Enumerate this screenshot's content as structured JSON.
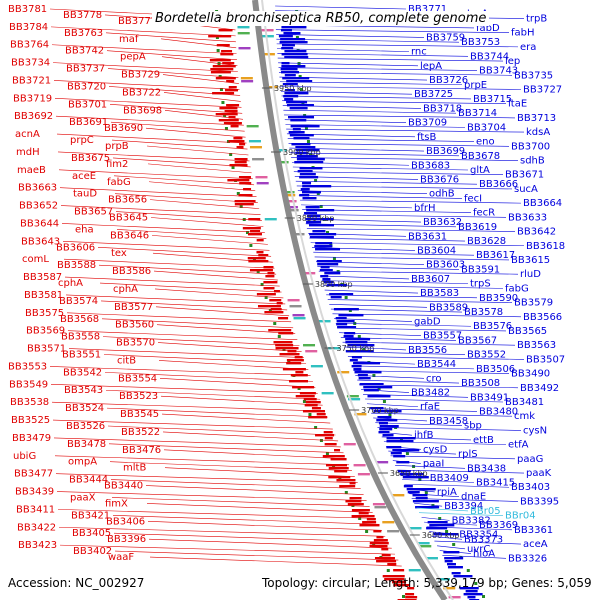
{
  "title": "Bordetella bronchiseptica RB50, complete genome",
  "footer": {
    "accession": "Accession: NC_002927",
    "summary": "Topology: circular; Length: 5,339,179 bp; Genes: 5,059"
  },
  "colors": {
    "reverse_strand": "#e00000",
    "forward_strand": "#0000dd",
    "rna_gene": "#33bbdd",
    "backbone": "#888888",
    "gc_marks": "#228822"
  },
  "ticks": [
    "3950 kbp",
    "3900 kbp",
    "3850 kbp",
    "3800 kbp",
    "3750 kbp",
    "3700 kbp",
    "3650 kbp",
    "3600 kbp"
  ],
  "left_labels": [
    "BB3781",
    "BB3778",
    "BB3777",
    "BB3784",
    "BB3763",
    "maf",
    "BB3764",
    "BB3742",
    "pepA",
    "BB3734",
    "BB3737",
    "BB3729",
    "BB3721",
    "BB3720",
    "BB3722",
    "BB3719",
    "BB3701",
    "BB3698",
    "BB3692",
    "BB3691",
    "BB3690",
    "acnA",
    "prpC",
    "prpB",
    "mdH",
    "BB3675",
    "fim2",
    "maeB",
    "aceE",
    "fabG",
    "BB3663",
    "tauD",
    "BB3656",
    "BB3652",
    "BB3657",
    "BB3645",
    "BB3644",
    "eha",
    "BB3646",
    "BB3643",
    "BB3606",
    "tex",
    "comL",
    "BB3588",
    "BB3586",
    "BB3587",
    "cphA",
    "cphA",
    "BB3581",
    "BB3574",
    "BB3577",
    "BB3575",
    "BB3568",
    "BB3560",
    "BB3569",
    "BB3558",
    "BB3570",
    "BB3571",
    "BB3551",
    "citB",
    "BB3553",
    "BB3542",
    "BB3554",
    "BB3549",
    "BB3543",
    "BB3523",
    "BB3538",
    "BB3524",
    "BB3545",
    "BB3525",
    "BB3526",
    "BB3522",
    "BB3479",
    "BB3478",
    "BB3476",
    "ubiG",
    "ompA",
    "mltB",
    "BB3477",
    "BB3444",
    "BB3440",
    "BB3439",
    "paaX",
    "fimX",
    "BB3411",
    "BB3421",
    "BB3406",
    "BB3422",
    "BB3405",
    "BB3396",
    "BB3423",
    "BB3402",
    "waaF"
  ],
  "right_labels": [
    "BB3771",
    "trpA",
    "trpB",
    "fabG",
    "fabD",
    "fabH",
    "BB3759",
    "BB3753",
    "era",
    "rnc",
    "BB3744",
    "lep",
    "lepA",
    "BB3743",
    "BB3735",
    "BB3726",
    "prpE",
    "BB3727",
    "BB3725",
    "BB3715",
    "ltaE",
    "BB3718",
    "BB3714",
    "BB3713",
    "BB3709",
    "BB3704",
    "kdsA",
    "ftsB",
    "eno",
    "BB3700",
    "BB3699",
    "BB3678",
    "sdhB",
    "BB3683",
    "gltA",
    "BB3671",
    "BB3676",
    "BB3666",
    "sucA",
    "odhB",
    "fecI",
    "BB3664",
    "bfrH",
    "fecR",
    "BB3633",
    "BB3632",
    "BB3619",
    "BB3642",
    "BB3631",
    "BB3628",
    "BB3618",
    "BB3604",
    "BB3617",
    "BB3615",
    "BB3603",
    "BB3591",
    "rluD",
    "BB3607",
    "trpS",
    "fabG",
    "BB3583",
    "BB3590",
    "BB3579",
    "BB3589",
    "BB3578",
    "BB3566",
    "gabD",
    "BB3576",
    "BB3565",
    "BB3557",
    "BB3567",
    "BB3563",
    "BB3556",
    "BB3552",
    "BB3507",
    "BB3544",
    "BB3506",
    "BB3490",
    "cro",
    "BB3508",
    "BB3492",
    "BB3482",
    "BB3491",
    "BB3481",
    "rfaE",
    "BB3480",
    "cmk",
    "BB3458",
    "sbp",
    "cysN",
    "ihfB",
    "ettB",
    "etfA",
    "cysD",
    "rplS",
    "paaG",
    "paaI",
    "BB3438",
    "paaK",
    "BB3409",
    "BB3415",
    "BB3403",
    "rpiA",
    "dnaE",
    "BB3395",
    "BB3394",
    "BBr05",
    "BBr04",
    "BB3382",
    "BB3369",
    "BB3361",
    "BB3354",
    "BB3373",
    "aceA",
    "uvrC",
    "hioA",
    "BB3326"
  ]
}
